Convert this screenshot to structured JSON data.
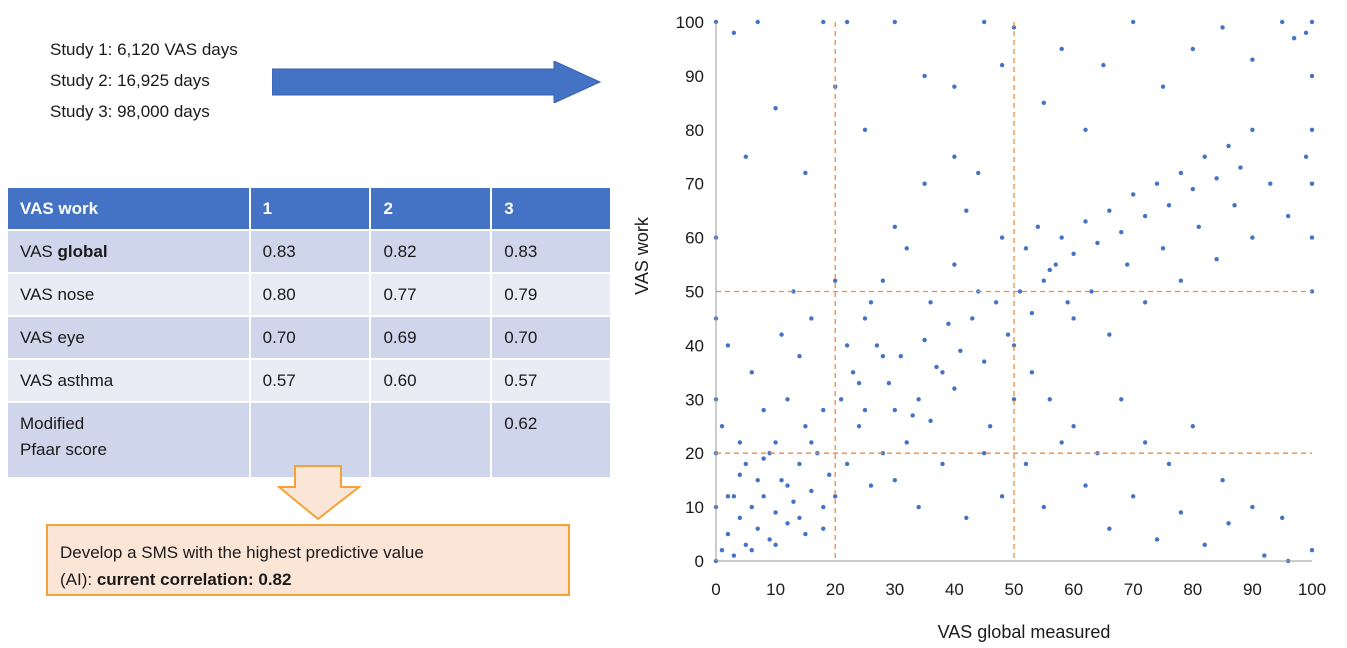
{
  "studies": [
    "Study 1: 6,120 VAS days",
    "Study 2: 16,925 days",
    "Study 3: 98,000 days"
  ],
  "table": {
    "headers": [
      "VAS work",
      "1",
      "2",
      "3"
    ],
    "rows": [
      {
        "label_prefix": "VA",
        "label_rest": "S ",
        "label_bold": "global",
        "values": [
          "0.83",
          "0.82",
          "0.83"
        ]
      },
      {
        "label": "VAS nose",
        "values": [
          "0.80",
          "0.77",
          "0.79"
        ]
      },
      {
        "label": "VAS eye",
        "values": [
          "0.70",
          "0.69",
          "0.70"
        ]
      },
      {
        "label": "VAS asthma",
        "values": [
          "0.57",
          "0.60",
          "0.57"
        ]
      },
      {
        "label_line1": "Modified",
        "label_line2": "Pfaar score",
        "values": [
          "",
          "",
          "0.62"
        ]
      }
    ]
  },
  "callout": {
    "line1": "Develop a SMS with the highest predictive value",
    "line2_prefix": "(AI): ",
    "line2_bold": "current correlation: 0.82"
  },
  "colors": {
    "header": "#4472c4",
    "row_dark": "#cfd5ea",
    "row_light": "#e9ebf5",
    "points": "#4472c4",
    "reference_lines": "#f08a3e",
    "callout_fill": "#fbe5d6",
    "callout_border": "#f3a33a"
  },
  "chart_data": {
    "type": "scatter",
    "title": "",
    "xlabel": "VAS global measured",
    "ylabel": "VAS work",
    "xlim": [
      0,
      100
    ],
    "ylim": [
      0,
      100
    ],
    "xticks": [
      0,
      10,
      20,
      30,
      40,
      50,
      60,
      70,
      80,
      90,
      100
    ],
    "yticks": [
      0,
      10,
      20,
      30,
      40,
      50,
      60,
      70,
      80,
      90,
      100
    ],
    "grid": false,
    "reference_lines": {
      "x": [
        20,
        50
      ],
      "y": [
        20,
        50
      ],
      "style": "dashed"
    },
    "series": [
      {
        "values_note_free": true,
        "points": [
          [
            0,
            0
          ],
          [
            1,
            2
          ],
          [
            2,
            5
          ],
          [
            3,
            1
          ],
          [
            4,
            8
          ],
          [
            5,
            3
          ],
          [
            6,
            10
          ],
          [
            7,
            6
          ],
          [
            8,
            12
          ],
          [
            9,
            4
          ],
          [
            10,
            9
          ],
          [
            11,
            15
          ],
          [
            12,
            7
          ],
          [
            13,
            11
          ],
          [
            14,
            18
          ],
          [
            15,
            5
          ],
          [
            16,
            13
          ],
          [
            17,
            20
          ],
          [
            18,
            10
          ],
          [
            19,
            16
          ],
          [
            2,
            12
          ],
          [
            4,
            16
          ],
          [
            6,
            2
          ],
          [
            8,
            19
          ],
          [
            10,
            3
          ],
          [
            12,
            14
          ],
          [
            14,
            8
          ],
          [
            16,
            22
          ],
          [
            18,
            6
          ],
          [
            20,
            12
          ],
          [
            22,
            18
          ],
          [
            24,
            25
          ],
          [
            26,
            14
          ],
          [
            28,
            20
          ],
          [
            30,
            28
          ],
          [
            32,
            22
          ],
          [
            34,
            30
          ],
          [
            36,
            26
          ],
          [
            38,
            35
          ],
          [
            40,
            32
          ],
          [
            21,
            30
          ],
          [
            23,
            35
          ],
          [
            25,
            28
          ],
          [
            27,
            40
          ],
          [
            29,
            33
          ],
          [
            31,
            38
          ],
          [
            33,
            27
          ],
          [
            35,
            41
          ],
          [
            37,
            36
          ],
          [
            39,
            44
          ],
          [
            41,
            39
          ],
          [
            43,
            45
          ],
          [
            45,
            37
          ],
          [
            47,
            48
          ],
          [
            49,
            42
          ],
          [
            51,
            50
          ],
          [
            53,
            46
          ],
          [
            55,
            52
          ],
          [
            57,
            55
          ],
          [
            59,
            48
          ],
          [
            52,
            58
          ],
          [
            54,
            62
          ],
          [
            56,
            54
          ],
          [
            58,
            60
          ],
          [
            60,
            57
          ],
          [
            62,
            63
          ],
          [
            64,
            59
          ],
          [
            66,
            65
          ],
          [
            68,
            61
          ],
          [
            70,
            68
          ],
          [
            72,
            64
          ],
          [
            74,
            70
          ],
          [
            76,
            66
          ],
          [
            78,
            72
          ],
          [
            80,
            69
          ],
          [
            82,
            75
          ],
          [
            84,
            71
          ],
          [
            86,
            77
          ],
          [
            88,
            73
          ],
          [
            90,
            80
          ],
          [
            60,
            45
          ],
          [
            63,
            50
          ],
          [
            66,
            42
          ],
          [
            69,
            55
          ],
          [
            72,
            48
          ],
          [
            75,
            58
          ],
          [
            78,
            52
          ],
          [
            81,
            62
          ],
          [
            84,
            56
          ],
          [
            87,
            66
          ],
          [
            90,
            60
          ],
          [
            93,
            70
          ],
          [
            96,
            64
          ],
          [
            99,
            75
          ],
          [
            100,
            80
          ],
          [
            100,
            90
          ],
          [
            100,
            100
          ],
          [
            100,
            70
          ],
          [
            100,
            60
          ],
          [
            100,
            50
          ],
          [
            0,
            10
          ],
          [
            0,
            20
          ],
          [
            0,
            30
          ],
          [
            0,
            45
          ],
          [
            0,
            60
          ],
          [
            0,
            100
          ],
          [
            1,
            25
          ],
          [
            2,
            40
          ],
          [
            3,
            98
          ],
          [
            5,
            75
          ],
          [
            7,
            100
          ],
          [
            10,
            84
          ],
          [
            15,
            72
          ],
          [
            18,
            100
          ],
          [
            20,
            88
          ],
          [
            22,
            100
          ],
          [
            25,
            80
          ],
          [
            30,
            100
          ],
          [
            35,
            90
          ],
          [
            40,
            88
          ],
          [
            45,
            100
          ],
          [
            48,
            92
          ],
          [
            50,
            99
          ],
          [
            55,
            85
          ],
          [
            58,
            95
          ],
          [
            62,
            80
          ],
          [
            65,
            92
          ],
          [
            70,
            100
          ],
          [
            75,
            88
          ],
          [
            80,
            95
          ],
          [
            85,
            99
          ],
          [
            90,
            93
          ],
          [
            95,
            100
          ],
          [
            97,
            97
          ],
          [
            99,
            98
          ],
          [
            30,
            62
          ],
          [
            35,
            70
          ],
          [
            40,
            75
          ],
          [
            42,
            65
          ],
          [
            44,
            72
          ],
          [
            25,
            45
          ],
          [
            28,
            52
          ],
          [
            32,
            58
          ],
          [
            36,
            48
          ],
          [
            40,
            55
          ],
          [
            44,
            50
          ],
          [
            48,
            60
          ],
          [
            50,
            40
          ],
          [
            53,
            35
          ],
          [
            56,
            30
          ],
          [
            60,
            25
          ],
          [
            64,
            20
          ],
          [
            68,
            30
          ],
          [
            72,
            22
          ],
          [
            76,
            18
          ],
          [
            80,
            25
          ],
          [
            85,
            15
          ],
          [
            90,
            10
          ],
          [
            95,
            8
          ],
          [
            100,
            2
          ],
          [
            45,
            20
          ],
          [
            48,
            12
          ],
          [
            52,
            18
          ],
          [
            55,
            10
          ],
          [
            58,
            22
          ],
          [
            62,
            14
          ],
          [
            66,
            6
          ],
          [
            70,
            12
          ],
          [
            74,
            4
          ],
          [
            78,
            9
          ],
          [
            82,
            3
          ],
          [
            86,
            7
          ],
          [
            92,
            1
          ],
          [
            96,
            0
          ],
          [
            30,
            15
          ],
          [
            34,
            10
          ],
          [
            38,
            18
          ],
          [
            42,
            8
          ],
          [
            46,
            25
          ],
          [
            50,
            30
          ],
          [
            12,
            30
          ],
          [
            14,
            38
          ],
          [
            16,
            45
          ],
          [
            18,
            28
          ],
          [
            20,
            52
          ],
          [
            22,
            40
          ],
          [
            24,
            33
          ],
          [
            26,
            48
          ],
          [
            28,
            38
          ],
          [
            15,
            25
          ],
          [
            8,
            28
          ],
          [
            6,
            35
          ],
          [
            4,
            22
          ],
          [
            11,
            42
          ],
          [
            13,
            50
          ],
          [
            9,
            20
          ],
          [
            7,
            15
          ],
          [
            3,
            12
          ],
          [
            5,
            18
          ],
          [
            10,
            22
          ]
        ]
      }
    ]
  }
}
